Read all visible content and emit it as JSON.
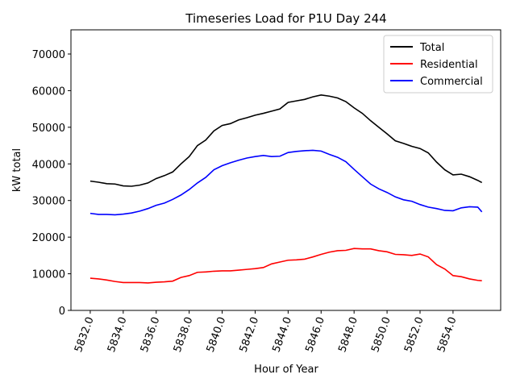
{
  "chart_data": {
    "type": "line",
    "title": "Timeseries Load for P1U   Day 244",
    "xlabel": "Hour of Year",
    "ylabel": "kW total",
    "x": [
      5832,
      5832.5,
      5833,
      5833.5,
      5834,
      5834.5,
      5835,
      5835.5,
      5836,
      5836.5,
      5837,
      5837.5,
      5838,
      5838.5,
      5839,
      5839.5,
      5840,
      5840.5,
      5841,
      5841.5,
      5842,
      5842.5,
      5843,
      5843.5,
      5844,
      5844.5,
      5845,
      5845.5,
      5846,
      5846.5,
      5847,
      5847.5,
      5848,
      5848.5,
      5849,
      5849.5,
      5850,
      5850.5,
      5851,
      5851.5,
      5852,
      5852.5,
      5853,
      5853.5,
      5854,
      5854.5,
      5855,
      5855.5,
      5855.75
    ],
    "series": [
      {
        "name": "Total",
        "color": "#000000",
        "values": [
          35300,
          35000,
          34600,
          34500,
          34000,
          33900,
          34200,
          34800,
          36000,
          36800,
          37800,
          40000,
          42000,
          45000,
          46500,
          49000,
          50500,
          51000,
          52000,
          52600,
          53300,
          53800,
          54400,
          55000,
          56800,
          57200,
          57600,
          58300,
          58800,
          58500,
          58000,
          57000,
          55300,
          53800,
          51800,
          50000,
          48200,
          46300,
          45600,
          44800,
          44200,
          43000,
          40500,
          38400,
          37000,
          37200,
          36500,
          35500,
          34900
        ]
      },
      {
        "name": "Residential",
        "color": "#ff0000",
        "values": [
          8800,
          8600,
          8300,
          7900,
          7600,
          7600,
          7600,
          7500,
          7700,
          7800,
          8000,
          9000,
          9500,
          10400,
          10500,
          10700,
          10800,
          10800,
          11000,
          11200,
          11400,
          11700,
          12700,
          13200,
          13700,
          13800,
          14000,
          14600,
          15300,
          15900,
          16300,
          16400,
          16900,
          16800,
          16800,
          16300,
          16000,
          15300,
          15200,
          15000,
          15400,
          14600,
          12500,
          11300,
          9500,
          9200,
          8600,
          8200,
          8100
        ]
      },
      {
        "name": "Commercial",
        "color": "#0000ff",
        "values": [
          26500,
          26200,
          26200,
          26100,
          26300,
          26600,
          27100,
          27800,
          28700,
          29300,
          30300,
          31500,
          33000,
          34800,
          36300,
          38400,
          39500,
          40300,
          41000,
          41600,
          42000,
          42300,
          42000,
          42100,
          43100,
          43400,
          43600,
          43700,
          43500,
          42600,
          41800,
          40600,
          38500,
          36500,
          34500,
          33200,
          32200,
          31000,
          30200,
          29800,
          28900,
          28200,
          27800,
          27300,
          27200,
          28000,
          28300,
          28200,
          26900
        ]
      }
    ],
    "xlim": [
      5830.83,
      5856.89
    ],
    "ylim": [
      0,
      76600
    ],
    "xticks": [
      {
        "value": 5832,
        "label": "5832.0"
      },
      {
        "value": 5834,
        "label": "5834.0"
      },
      {
        "value": 5836,
        "label": "5836.0"
      },
      {
        "value": 5838,
        "label": "5838.0"
      },
      {
        "value": 5840,
        "label": "5840.0"
      },
      {
        "value": 5842,
        "label": "5842.0"
      },
      {
        "value": 5844,
        "label": "5844.0"
      },
      {
        "value": 5846,
        "label": "5846.0"
      },
      {
        "value": 5848,
        "label": "5848.0"
      },
      {
        "value": 5850,
        "label": "5850.0"
      },
      {
        "value": 5852,
        "label": "5852.0"
      },
      {
        "value": 5854,
        "label": "5854.0"
      }
    ],
    "yticks": [
      0,
      10000,
      20000,
      30000,
      40000,
      50000,
      60000,
      70000
    ],
    "legend": "upper right",
    "grid": false
  }
}
